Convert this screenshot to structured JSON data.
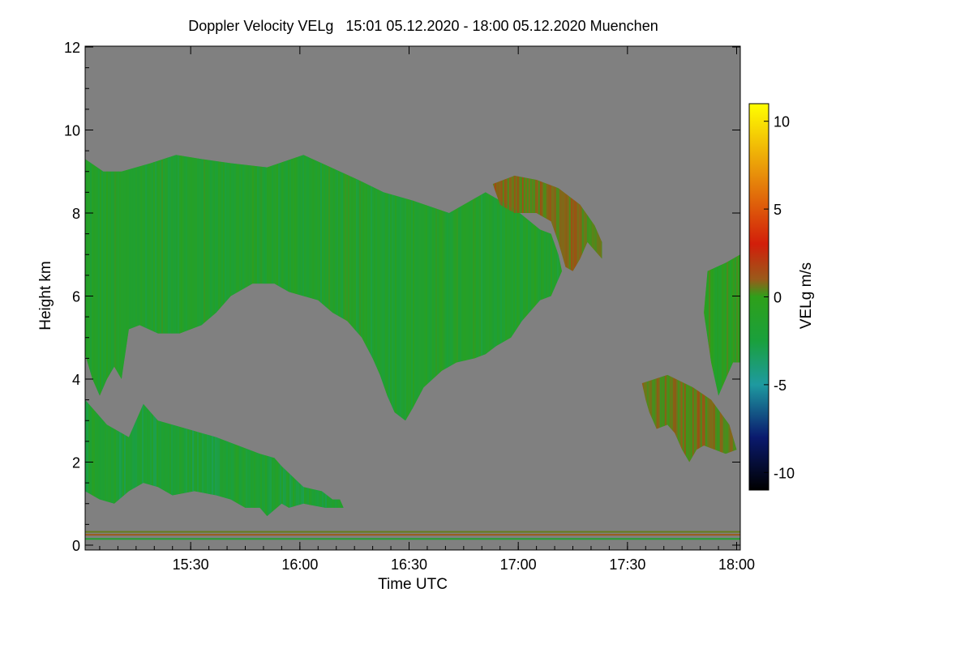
{
  "chart_data": {
    "type": "heatmap",
    "title": "Doppler Velocity VELg   15:01 05.12.2020 - 18:00 05.12.2020 Muenchen",
    "xlabel": "Time UTC",
    "ylabel": "Height km",
    "x_range_min_utc": [
      "15:01",
      "18:01"
    ],
    "ylim": [
      0,
      12
    ],
    "x_ticks": [
      {
        "label": "15:30",
        "minutes": 29
      },
      {
        "label": "16:00",
        "minutes": 59
      },
      {
        "label": "16:30",
        "minutes": 89
      },
      {
        "label": "17:00",
        "minutes": 119
      },
      {
        "label": "17:30",
        "minutes": 149
      },
      {
        "label": "18:00",
        "minutes": 179
      }
    ],
    "y_ticks": [
      0,
      2,
      4,
      6,
      8,
      10,
      12
    ],
    "colorbar": {
      "label": "VELg m/s",
      "range": [
        -11,
        11
      ],
      "ticks": [
        10,
        5,
        0,
        -5,
        -10
      ],
      "stops": [
        {
          "value": -11,
          "color": "#000000"
        },
        {
          "value": -8,
          "color": "#0a1a6e"
        },
        {
          "value": -5,
          "color": "#1e9aa0"
        },
        {
          "value": -2.5,
          "color": "#1aa03c"
        },
        {
          "value": 0,
          "color": "#2ea01a"
        },
        {
          "value": 1,
          "color": "#9a5a1a"
        },
        {
          "value": 3,
          "color": "#d21e0a"
        },
        {
          "value": 7,
          "color": "#e8900a"
        },
        {
          "value": 11,
          "color": "#ffff00"
        }
      ]
    },
    "background_color": "#808080",
    "echo_regions": [
      {
        "name": "upper-cloud-west",
        "dominant_velocity": -1.5,
        "outline": [
          [
            0,
            9.3
          ],
          [
            5,
            9.0
          ],
          [
            10,
            9.0
          ],
          [
            18,
            9.2
          ],
          [
            25,
            9.4
          ],
          [
            32,
            9.3
          ],
          [
            40,
            9.2
          ],
          [
            50,
            9.1
          ],
          [
            60,
            9.4
          ],
          [
            65,
            9.2
          ],
          [
            75,
            8.8
          ],
          [
            82,
            8.5
          ],
          [
            90,
            8.3
          ],
          [
            100,
            8.0
          ],
          [
            110,
            8.5
          ],
          [
            118,
            8.1
          ],
          [
            125,
            7.6
          ],
          [
            128,
            7.5
          ],
          [
            130,
            7.0
          ],
          [
            131,
            6.6
          ],
          [
            128,
            6.0
          ],
          [
            125,
            5.9
          ],
          [
            120,
            5.4
          ],
          [
            117,
            5.0
          ],
          [
            113,
            4.8
          ],
          [
            110,
            4.6
          ],
          [
            107,
            4.5
          ],
          [
            102,
            4.4
          ],
          [
            98,
            4.2
          ],
          [
            93,
            3.8
          ],
          [
            90,
            3.3
          ],
          [
            88,
            3.0
          ],
          [
            85,
            3.2
          ],
          [
            83,
            3.6
          ],
          [
            81,
            4.1
          ],
          [
            79,
            4.5
          ],
          [
            76,
            5.0
          ],
          [
            72,
            5.4
          ],
          [
            68,
            5.6
          ],
          [
            64,
            5.9
          ],
          [
            60,
            6.0
          ],
          [
            56,
            6.1
          ],
          [
            52,
            6.3
          ],
          [
            46,
            6.3
          ],
          [
            40,
            6.0
          ],
          [
            36,
            5.6
          ],
          [
            32,
            5.3
          ],
          [
            26,
            5.1
          ],
          [
            20,
            5.1
          ],
          [
            15,
            5.3
          ],
          [
            12,
            5.2
          ],
          [
            11,
            4.6
          ],
          [
            10,
            4.0
          ],
          [
            8,
            4.3
          ],
          [
            6,
            4.0
          ],
          [
            4,
            3.6
          ],
          [
            2,
            4.0
          ],
          [
            0,
            4.6
          ]
        ]
      },
      {
        "name": "upper-cloud-east-top",
        "dominant_velocity": 0.5,
        "outline": [
          [
            112,
            8.7
          ],
          [
            118,
            8.9
          ],
          [
            124,
            8.8
          ],
          [
            130,
            8.6
          ],
          [
            136,
            8.2
          ],
          [
            140,
            7.7
          ],
          [
            142,
            7.3
          ],
          [
            142,
            6.9
          ],
          [
            140,
            7.1
          ],
          [
            138,
            7.3
          ],
          [
            136,
            6.9
          ],
          [
            134,
            6.6
          ],
          [
            132,
            6.7
          ],
          [
            130,
            7.3
          ],
          [
            128,
            7.8
          ],
          [
            124,
            8.0
          ],
          [
            118,
            8.0
          ],
          [
            114,
            8.2
          ]
        ]
      },
      {
        "name": "right-edge-cloud",
        "dominant_velocity": -0.5,
        "outline": [
          [
            171,
            6.6
          ],
          [
            176,
            6.8
          ],
          [
            180,
            7.0
          ],
          [
            180,
            4.4
          ],
          [
            178,
            4.4
          ],
          [
            176,
            4.0
          ],
          [
            174,
            3.6
          ],
          [
            173,
            4.0
          ],
          [
            172,
            4.4
          ],
          [
            171,
            5.0
          ],
          [
            170,
            5.6
          ]
        ]
      },
      {
        "name": "mid-cloud-east",
        "dominant_velocity": 0.5,
        "outline": [
          [
            153,
            3.9
          ],
          [
            160,
            4.1
          ],
          [
            167,
            3.8
          ],
          [
            172,
            3.5
          ],
          [
            177,
            2.9
          ],
          [
            179,
            2.3
          ],
          [
            176,
            2.2
          ],
          [
            173,
            2.3
          ],
          [
            170,
            2.4
          ],
          [
            168,
            2.3
          ],
          [
            166,
            2.0
          ],
          [
            164,
            2.3
          ],
          [
            162,
            2.7
          ],
          [
            160,
            2.9
          ],
          [
            157,
            2.8
          ],
          [
            155,
            3.2
          ],
          [
            154,
            3.5
          ]
        ]
      },
      {
        "name": "lower-cloud-west",
        "dominant_velocity": -2.0,
        "outline": [
          [
            0,
            3.5
          ],
          [
            6,
            2.9
          ],
          [
            12,
            2.6
          ],
          [
            16,
            3.4
          ],
          [
            20,
            3.0
          ],
          [
            28,
            2.8
          ],
          [
            36,
            2.6
          ],
          [
            42,
            2.4
          ],
          [
            48,
            2.2
          ],
          [
            52,
            2.1
          ],
          [
            54,
            1.9
          ],
          [
            60,
            1.4
          ],
          [
            65,
            1.3
          ],
          [
            68,
            1.1
          ],
          [
            70,
            1.1
          ],
          [
            71,
            0.9
          ],
          [
            66,
            0.9
          ],
          [
            60,
            1.0
          ],
          [
            56,
            0.9
          ],
          [
            54,
            1.0
          ],
          [
            50,
            0.7
          ],
          [
            48,
            0.9
          ],
          [
            44,
            0.9
          ],
          [
            40,
            1.1
          ],
          [
            36,
            1.2
          ],
          [
            30,
            1.3
          ],
          [
            24,
            1.2
          ],
          [
            20,
            1.4
          ],
          [
            16,
            1.5
          ],
          [
            12,
            1.3
          ],
          [
            8,
            1.0
          ],
          [
            4,
            1.1
          ],
          [
            0,
            1.3
          ]
        ]
      }
    ],
    "near_ground_bands": [
      {
        "height": 0.15,
        "dominant_velocity": -1.5
      },
      {
        "height": 0.25,
        "dominant_velocity": 1.0
      },
      {
        "height": 0.32,
        "dominant_velocity": 0.5
      }
    ]
  }
}
